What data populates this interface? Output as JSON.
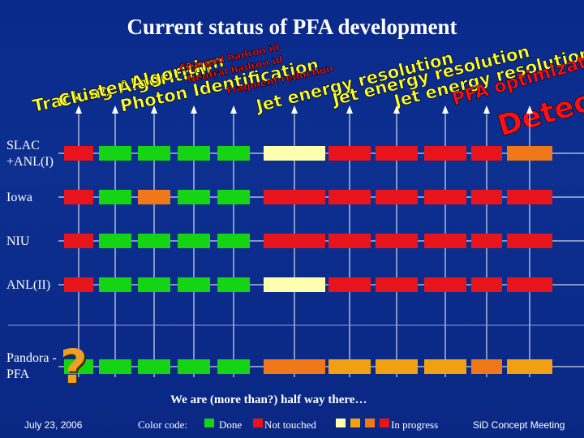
{
  "title": "Current status of PFA development",
  "columns": [
    "Tracking Algorithm",
    "Cluster Algorithm",
    "Photon Identification",
    "Charged hadron id",
    "Neutral hadron id",
    "Fragment reduction",
    "Jet energy resolution",
    "Jet energy resolution",
    "Jet energy resolution",
    "PFA optimization",
    "Detector"
  ],
  "rows": [
    {
      "label": "SLAC +ANL(I)",
      "status": [
        "red",
        "green",
        "green",
        "green",
        "green",
        "yellow",
        "red",
        "red",
        "red",
        "red",
        "orange"
      ]
    },
    {
      "label": "Iowa",
      "status": [
        "red",
        "green",
        "orange",
        "green",
        "green",
        "red",
        "red",
        "red",
        "red",
        "red",
        "red"
      ]
    },
    {
      "label": "NIU",
      "status": [
        "red",
        "green",
        "green",
        "green",
        "green",
        "red",
        "red",
        "red",
        "red",
        "red",
        "red"
      ]
    },
    {
      "label": "ANL(II)",
      "status": [
        "red",
        "green",
        "green",
        "green",
        "green",
        "yellow",
        "red",
        "red",
        "red",
        "red",
        "red"
      ]
    },
    {
      "label": "Pandora -PFA",
      "status": [
        "green",
        "green",
        "green",
        "green",
        "green",
        "orange",
        "amber",
        "amber",
        "amber",
        "orange",
        "amber"
      ]
    }
  ],
  "question_mark": "?",
  "note": "We are (more than?) half way there…",
  "footer": {
    "date": "July 23, 2006",
    "color_code_label": "Color code:",
    "done_label": "Done",
    "not_touched_label": "Not touched",
    "in_progress_label": "In progress",
    "meeting": "SiD Concept Meeting"
  },
  "colors": {
    "red": "#e8141c",
    "green": "#14d414",
    "orange": "#f07818",
    "yellow": "#ffffb0",
    "amber": "#f0a010",
    "background": "#0c2f90",
    "heading_yellow": "#ffff30",
    "heading_red": "#ff1010"
  }
}
